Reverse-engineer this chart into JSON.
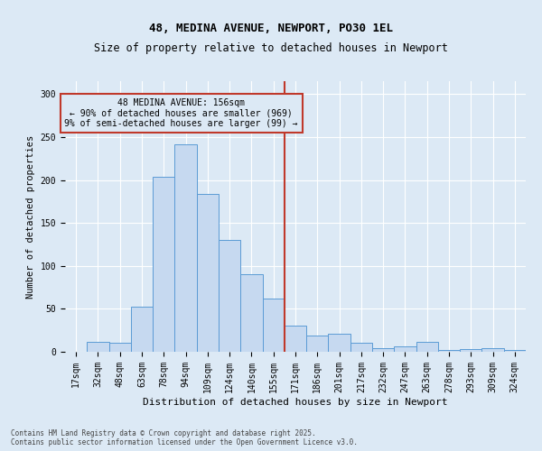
{
  "title1": "48, MEDINA AVENUE, NEWPORT, PO30 1EL",
  "title2": "Size of property relative to detached houses in Newport",
  "xlabel": "Distribution of detached houses by size in Newport",
  "ylabel": "Number of detached properties",
  "categories": [
    "17sqm",
    "32sqm",
    "48sqm",
    "63sqm",
    "78sqm",
    "94sqm",
    "109sqm",
    "124sqm",
    "140sqm",
    "155sqm",
    "171sqm",
    "186sqm",
    "201sqm",
    "217sqm",
    "232sqm",
    "247sqm",
    "263sqm",
    "278sqm",
    "293sqm",
    "309sqm",
    "324sqm"
  ],
  "values": [
    0,
    12,
    10,
    53,
    204,
    242,
    184,
    130,
    90,
    62,
    30,
    19,
    21,
    11,
    4,
    6,
    12,
    2,
    3,
    4,
    2
  ],
  "bar_color": "#c6d9f0",
  "bar_edge_color": "#5b9bd5",
  "vline_color": "#c0392b",
  "vline_x_index": 9.5,
  "annotation_text": "48 MEDINA AVENUE: 156sqm\n← 90% of detached houses are smaller (969)\n9% of semi-detached houses are larger (99) →",
  "annotation_box_color": "#c0392b",
  "background_color": "#dce9f5",
  "grid_color": "#ffffff",
  "footer_text": "Contains HM Land Registry data © Crown copyright and database right 2025.\nContains public sector information licensed under the Open Government Licence v3.0.",
  "ylim": [
    0,
    315
  ],
  "yticks": [
    0,
    50,
    100,
    150,
    200,
    250,
    300
  ],
  "title1_fontsize": 9,
  "title2_fontsize": 8.5,
  "xlabel_fontsize": 8,
  "ylabel_fontsize": 7.5,
  "tick_fontsize": 7,
  "annot_fontsize": 7,
  "footer_fontsize": 5.5
}
